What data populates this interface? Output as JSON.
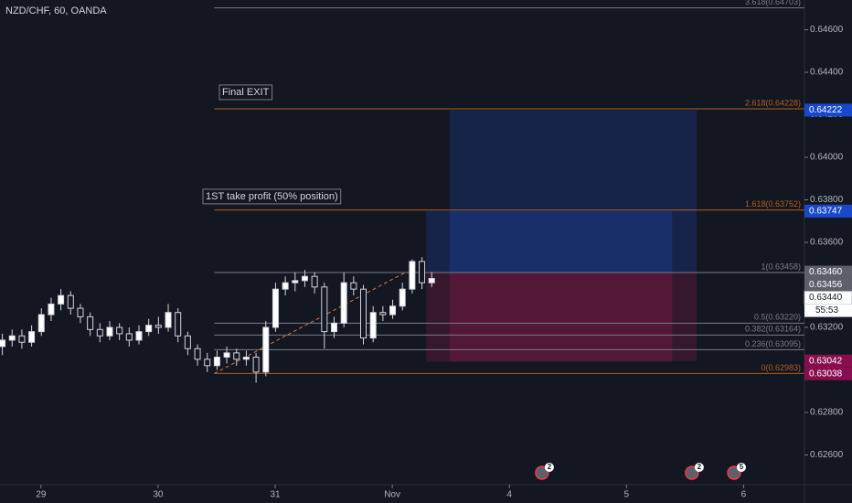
{
  "chart_data": {
    "type": "candlestick",
    "title": "NZD/CHF, 60, OANDA",
    "x": [
      -0.33,
      -0.2467,
      -0.1633,
      -0.08,
      0.0033,
      0.0867,
      0.17,
      0.2533,
      0.3367,
      0.42,
      0.5033,
      0.5867,
      0.67,
      0.7533,
      0.8367,
      0.92,
      1.0033,
      1.0867,
      1.17,
      1.2533,
      1.3367,
      1.42,
      1.5033,
      1.5867,
      1.67,
      1.7533,
      1.8367,
      1.92,
      2.0033,
      2.0867,
      2.17,
      2.2533,
      2.3367,
      2.42,
      2.5033,
      2.5867,
      2.67,
      2.7533,
      2.8367,
      2.92,
      3.0033,
      3.0867,
      3.17,
      3.2533,
      3.3367
    ],
    "open": [
      0.6311,
      0.6314,
      0.6316,
      0.6313,
      0.6318,
      0.6326,
      0.6331,
      0.6335,
      0.6329,
      0.6325,
      0.6319,
      0.6316,
      0.632,
      0.6317,
      0.6314,
      0.6318,
      0.6321,
      0.632,
      0.6327,
      0.6316,
      0.631,
      0.6305,
      0.6302,
      0.6306,
      0.6308,
      0.6305,
      0.6306,
      0.6299,
      0.632,
      0.6338,
      0.6341,
      0.6342,
      0.6344,
      0.6339,
      0.6318,
      0.6322,
      0.6341,
      0.6338,
      0.6315,
      0.6327,
      0.6326,
      0.633,
      0.6338,
      0.6351,
      0.6341
    ],
    "high": [
      0.6317,
      0.6319,
      0.6319,
      0.6321,
      0.6329,
      0.6334,
      0.6338,
      0.6337,
      0.6331,
      0.6327,
      0.6322,
      0.6323,
      0.6322,
      0.632,
      0.6321,
      0.6324,
      0.6325,
      0.6331,
      0.6329,
      0.6318,
      0.6312,
      0.6308,
      0.6309,
      0.6311,
      0.631,
      0.6309,
      0.6308,
      0.6323,
      0.6341,
      0.6344,
      0.6346,
      0.6347,
      0.6346,
      0.6341,
      0.6325,
      0.6346,
      0.6344,
      0.634,
      0.633,
      0.633,
      0.6333,
      0.6341,
      0.6352,
      0.6353,
      0.6346
    ],
    "low": [
      0.6307,
      0.6311,
      0.631,
      0.6311,
      0.6316,
      0.6323,
      0.6328,
      0.6326,
      0.6322,
      0.6316,
      0.6313,
      0.6314,
      0.6314,
      0.6311,
      0.6312,
      0.6316,
      0.6317,
      0.6318,
      0.6313,
      0.6307,
      0.6302,
      0.6299,
      0.63,
      0.6303,
      0.6302,
      0.6302,
      0.6294,
      0.6297,
      0.6318,
      0.6335,
      0.6337,
      0.6339,
      0.6336,
      0.631,
      0.6315,
      0.632,
      0.6335,
      0.6312,
      0.6313,
      0.6323,
      0.6324,
      0.6328,
      0.6336,
      0.6338,
      0.6339
    ],
    "close": [
      0.6314,
      0.6316,
      0.6313,
      0.6318,
      0.6326,
      0.6331,
      0.6335,
      0.6329,
      0.6325,
      0.6319,
      0.6316,
      0.632,
      0.6317,
      0.6314,
      0.6318,
      0.6321,
      0.632,
      0.6327,
      0.6316,
      0.631,
      0.6305,
      0.6302,
      0.6306,
      0.6308,
      0.6305,
      0.6306,
      0.6299,
      0.632,
      0.6338,
      0.6341,
      0.6342,
      0.6344,
      0.6339,
      0.6318,
      0.6322,
      0.6341,
      0.6338,
      0.6315,
      0.6327,
      0.6326,
      0.633,
      0.6338,
      0.6351,
      0.6341,
      0.6343
    ],
    "up_color": "#ffffff",
    "down_color": "#131722",
    "wick_color": "#d1d4dc",
    "xlim": [
      -0.35,
      6.52
    ],
    "xticks": [
      {
        "value": 0,
        "label": "29"
      },
      {
        "value": 1,
        "label": "30"
      },
      {
        "value": 2,
        "label": "31"
      },
      {
        "value": 3,
        "label": "Nov"
      },
      {
        "value": 4,
        "label": "4"
      },
      {
        "value": 5,
        "label": "5"
      },
      {
        "value": 6,
        "label": "6"
      }
    ],
    "ylim": [
      0.6246,
      0.6474
    ],
    "yticks": [
      {
        "value": 0.626,
        "label": "0.62600"
      },
      {
        "value": 0.628,
        "label": "0.62800"
      },
      {
        "value": 0.63,
        "label": "0.63000"
      },
      {
        "value": 0.632,
        "label": "0.63200"
      },
      {
        "value": 0.634,
        "label": "0.63400"
      },
      {
        "value": 0.636,
        "label": "0.63600"
      },
      {
        "value": 0.638,
        "label": "0.63800"
      },
      {
        "value": 0.64,
        "label": "0.64000"
      },
      {
        "value": 0.642,
        "label": "0.64200"
      },
      {
        "value": 0.644,
        "label": "0.64400"
      },
      {
        "value": 0.646,
        "label": "0.64600"
      }
    ],
    "fib_start": 1.48,
    "fib_levels": [
      {
        "label": "3.618(0.64703)",
        "value": 0.64703,
        "color": "#787b86"
      },
      {
        "label": "2.618(0.64228)",
        "value": 0.64228,
        "color": "#b35c1e"
      },
      {
        "label": "1.618(0.63752)",
        "value": 0.63752,
        "color": "#b35c1e"
      },
      {
        "label": "1(0.63458)",
        "value": 0.63458,
        "color": "#787b86"
      },
      {
        "label": "0.5(0.63220)",
        "value": 0.6322,
        "color": "#787b86"
      },
      {
        "label": "0.382(0.63164)",
        "value": 0.63164,
        "color": "#787b86"
      },
      {
        "label": "0.236(0.63095)",
        "value": 0.63095,
        "color": "#787b86"
      },
      {
        "label": "0(0.62983)",
        "value": 0.62983,
        "color": "#b35c1e"
      }
    ],
    "trend_line": {
      "x": [
        1.48,
        3.11
      ],
      "y": [
        0.62983,
        0.63458
      ],
      "color": "#e0763a"
    },
    "positions": [
      {
        "x": [
          3.29,
          5.39
        ],
        "entry": 0.63456,
        "target": 0.63747,
        "stop": 0.63038
      },
      {
        "x": [
          3.49,
          5.6
        ],
        "entry": 0.6346,
        "target": 0.64222,
        "stop": 0.63042
      }
    ],
    "annotations": [
      "Final EXIT",
      "1ST take profit (50% position)"
    ],
    "price_labels": [
      {
        "value": 0.64222,
        "label": "0.64222",
        "color": "#1848cc"
      },
      {
        "value": 0.63747,
        "label": "0.63747",
        "color": "#1848cc"
      },
      {
        "value": 0.6346,
        "label": "0.63460",
        "color": "#5d606b"
      },
      {
        "value": 0.63456,
        "label": "0.63456",
        "color": "#5d606b"
      },
      {
        "value": 0.6344,
        "label": "0.63440",
        "color": "#ffffff"
      },
      {
        "value": 0.63042,
        "label": "0.63042",
        "color": "#880e4f"
      },
      {
        "value": 0.63038,
        "label": "0.63038",
        "color": "#880e4f"
      }
    ],
    "countdown": "55:53",
    "events": [
      {
        "x": 4.31,
        "label": "2"
      },
      {
        "x": 5.59,
        "label": "2"
      },
      {
        "x": 5.95,
        "label": "5"
      }
    ]
  }
}
